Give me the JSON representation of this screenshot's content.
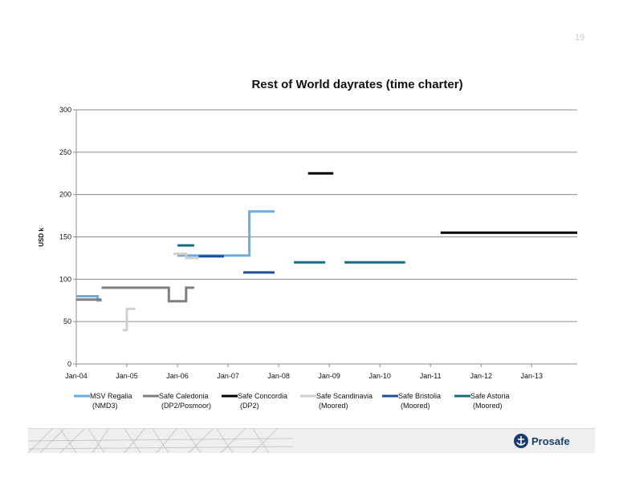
{
  "page": {
    "number": "19"
  },
  "brand": {
    "name": "Prosafe",
    "logo_icon": "prosafe-anchor-icon",
    "color": "#1a3d6f"
  },
  "chart_data": {
    "type": "line",
    "title": "Rest of World dayrates (time charter)",
    "xlabel": "",
    "ylabel": "USD k",
    "x_ticks": [
      "Jan-04",
      "Jan-05",
      "Jan-06",
      "Jan-07",
      "Jan-08",
      "Jan-09",
      "Jan-10",
      "Jan-11",
      "Jan-12",
      "Jan-13"
    ],
    "xlim": [
      2004.0,
      2013.9
    ],
    "y_ticks": [
      "0",
      "50",
      "100",
      "150",
      "200",
      "250",
      "300"
    ],
    "ylim": [
      0,
      300
    ],
    "grid": "horizontal",
    "legend": "bottom",
    "series": [
      {
        "name": "MSV Regalia\n(NMD3)",
        "color": "#6aaee0",
        "width": 3,
        "segments": [
          [
            [
              2004.0,
              80
            ],
            [
              2004.42,
              80
            ],
            [
              2004.42,
              75
            ],
            [
              2004.5,
              75
            ]
          ],
          [
            [
              2006.0,
              128
            ],
            [
              2007.42,
              128
            ],
            [
              2007.42,
              180
            ],
            [
              2007.92,
              180
            ]
          ]
        ]
      },
      {
        "name": "Safe Caledonia\n(DP2/Posmoor)",
        "color": "#7f7f7f",
        "width": 3,
        "segments": [
          [
            [
              2004.0,
              76
            ],
            [
              2004.5,
              76
            ]
          ],
          [
            [
              2004.5,
              90
            ],
            [
              2005.83,
              90
            ],
            [
              2005.83,
              74
            ],
            [
              2006.17,
              74
            ],
            [
              2006.17,
              90
            ],
            [
              2006.33,
              90
            ]
          ]
        ]
      },
      {
        "name": "Safe Concordia\n(DP2)",
        "color": "#000000",
        "width": 3,
        "segments": [
          [
            [
              2008.58,
              225
            ],
            [
              2009.08,
              225
            ]
          ],
          [
            [
              2011.2,
              155
            ],
            [
              2013.9,
              155
            ]
          ]
        ]
      },
      {
        "name": "Safe Scandinavia\n(Moored)",
        "color": "#d0d0c8",
        "width": 3,
        "segments": [
          [
            [
              2004.92,
              40
            ],
            [
              2005.0,
              40
            ],
            [
              2005.0,
              65
            ],
            [
              2005.17,
              65
            ]
          ],
          [
            [
              2005.92,
              130
            ],
            [
              2006.17,
              130
            ],
            [
              2006.17,
              125
            ],
            [
              2006.42,
              125
            ]
          ]
        ]
      },
      {
        "name": "Safe Bristolia\n(Moored)",
        "color": "#1f4e9a",
        "width": 3,
        "segments": [
          [
            [
              2006.42,
              127
            ],
            [
              2006.92,
              127
            ]
          ],
          [
            [
              2007.3,
              108
            ],
            [
              2007.92,
              108
            ]
          ]
        ]
      },
      {
        "name": "Safe Astoria\n(Moored)",
        "color": "#1c6a80",
        "width": 3,
        "segments": [
          [
            [
              2006.0,
              140
            ],
            [
              2006.33,
              140
            ]
          ],
          [
            [
              2008.3,
              120
            ],
            [
              2008.92,
              120
            ]
          ],
          [
            [
              2009.3,
              120
            ],
            [
              2010.5,
              120
            ]
          ]
        ]
      }
    ]
  }
}
